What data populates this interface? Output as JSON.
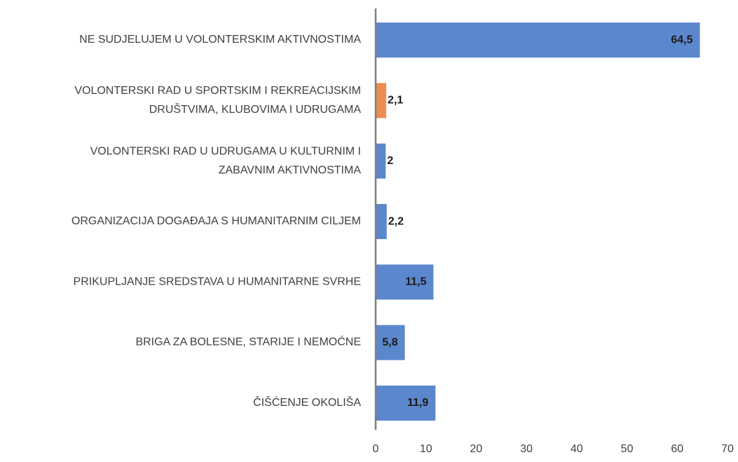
{
  "chart_data": {
    "type": "barh",
    "categories": [
      [
        "NE SUDJELUJEM U VOLONTERSKIM AKTIVNOSTIMA"
      ],
      [
        "VOLONTERSKI RAD U SPORTSKIM I REKREACIJSKIM",
        "DRUŠTVIMA, KLUBOVIMA I UDRUGAMA"
      ],
      [
        "VOLONTERSKI RAD U UDRUGAMA U KULTURNIM I",
        "ZABAVNIM AKTIVNOSTIMA"
      ],
      [
        "ORGANIZACIJA DOGAĐAJA S HUMANITARNIM CILJEM"
      ],
      [
        "PRIKUPLJANJE SREDSTAVA U HUMANITARNE SVRHE"
      ],
      [
        "BRIGA ZA BOLESNE, STARIJE I NEMOĆNE"
      ],
      [
        "ČIŠĆENJE OKOLIŠA"
      ]
    ],
    "values": [
      64.5,
      2.1,
      2,
      2.2,
      11.5,
      5.8,
      11.9
    ],
    "value_labels": [
      "64,5",
      "2,1",
      "2",
      "2,2",
      "11,5",
      "5,8",
      "11,9"
    ],
    "colors": [
      "#5b87cd",
      "#ee8c4f",
      "#5b87cd",
      "#5b87cd",
      "#5b87cd",
      "#5b87cd",
      "#5b87cd"
    ],
    "xlim": [
      0,
      70
    ],
    "xticks": [
      0,
      10,
      20,
      30,
      40,
      50,
      60,
      70
    ],
    "grid": false
  }
}
